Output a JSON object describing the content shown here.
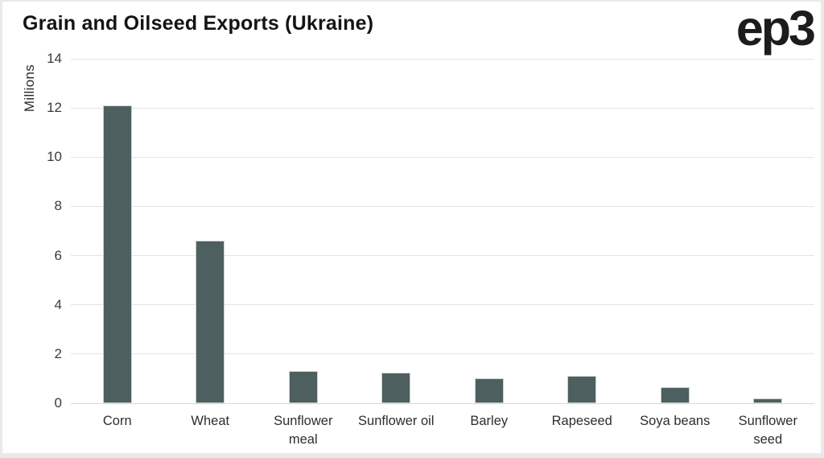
{
  "page": {
    "frame_color": "#e8e9e9",
    "card_background": "#ffffff"
  },
  "header": {
    "title": "Grain and Oilseed Exports (Ukraine)",
    "logo_text": "ep3"
  },
  "chart_data": {
    "type": "bar",
    "title": "Grain and Oilseed Exports (Ukraine)",
    "xlabel": "",
    "ylabel": "Millions",
    "categories": [
      "Corn",
      "Wheat",
      "Sunflower meal",
      "Sunflower oil",
      "Barley",
      "Rapeseed",
      "Soya beans",
      "Sunflower seed"
    ],
    "category_label_lines": [
      [
        "Corn"
      ],
      [
        "Wheat"
      ],
      [
        "Sunflower",
        "meal"
      ],
      [
        "Sunflower oil"
      ],
      [
        "Barley"
      ],
      [
        "Rapeseed"
      ],
      [
        "Soya beans"
      ],
      [
        "Sunflower",
        "seed"
      ]
    ],
    "values": [
      12.1,
      6.6,
      1.3,
      1.25,
      1.0,
      1.1,
      0.65,
      0.2
    ],
    "ylim": [
      0,
      14
    ],
    "yticks": [
      0,
      2,
      4,
      6,
      8,
      10,
      12,
      14
    ],
    "grid": true,
    "legend": false,
    "bar_color": "#4d5f5f",
    "bar_border_color": "#c9d1d1",
    "gridline_color": "#e4e4e4",
    "axis_line_color": "#d8d8d8",
    "text_color": "#141414"
  }
}
